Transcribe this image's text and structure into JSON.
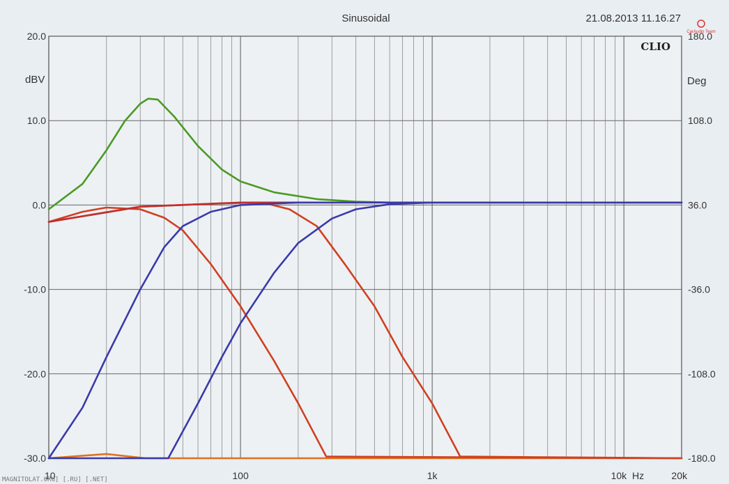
{
  "chart_data": {
    "type": "line",
    "title": "Sinusoidal",
    "timestamp": "21.08.2013 11.16.27",
    "brand": "CLIO",
    "logo_text": "CarAudio Team",
    "watermark": "MAGNITOLAT.ORG] [.RU] [.NET]",
    "x_scale": "log",
    "xlim": [
      10,
      20000
    ],
    "x_ticks": [
      {
        "value": 10,
        "label": "10"
      },
      {
        "value": 100,
        "label": "100"
      },
      {
        "value": 1000,
        "label": "1k"
      },
      {
        "value": 10000,
        "label": "10k"
      },
      {
        "value": 20000,
        "label": "20k"
      }
    ],
    "x_unit_label": "Hz",
    "ylabel": "dBV",
    "ylim": [
      -30,
      20
    ],
    "y_ticks": [
      {
        "value": 20,
        "label": "20.0"
      },
      {
        "value": 10,
        "label": "10.0"
      },
      {
        "value": 0,
        "label": "0.0"
      },
      {
        "value": -10,
        "label": "-10.0"
      },
      {
        "value": -20,
        "label": "-20.0"
      },
      {
        "value": -30,
        "label": "-30.0"
      }
    ],
    "y2label": "Deg",
    "y2lim": [
      -180,
      180
    ],
    "y2_ticks": [
      {
        "value": 180,
        "label": "180.0"
      },
      {
        "value": 108,
        "label": "108.0"
      },
      {
        "value": 36,
        "label": "36.0"
      },
      {
        "value": -36,
        "label": "-36.0"
      },
      {
        "value": -108,
        "label": "-108.0"
      },
      {
        "value": -180,
        "label": "-180.0"
      }
    ],
    "grid": true,
    "series": [
      {
        "color": "#4a9a24",
        "points": [
          [
            10,
            -0.5
          ],
          [
            15,
            2.5
          ],
          [
            20,
            6.5
          ],
          [
            25,
            10
          ],
          [
            30,
            12
          ],
          [
            33,
            12.6
          ],
          [
            37,
            12.5
          ],
          [
            45,
            10.5
          ],
          [
            60,
            7
          ],
          [
            80,
            4.2
          ],
          [
            100,
            2.8
          ],
          [
            150,
            1.5
          ],
          [
            250,
            0.7
          ],
          [
            400,
            0.4
          ],
          [
            600,
            0.3
          ],
          [
            1000,
            0.3
          ],
          [
            20000,
            0.3
          ]
        ]
      },
      {
        "color": "#e07020",
        "points": [
          [
            10,
            -30
          ],
          [
            20,
            -29.5
          ],
          [
            32,
            -30
          ],
          [
            300,
            -30
          ],
          [
            600,
            -30
          ],
          [
            1000,
            -30
          ],
          [
            20000,
            -30
          ]
        ]
      },
      {
        "color": "#d04020",
        "points": [
          [
            10,
            -2
          ],
          [
            15,
            -0.8
          ],
          [
            20,
            -0.3
          ],
          [
            30,
            -0.5
          ],
          [
            40,
            -1.5
          ],
          [
            50,
            -3
          ],
          [
            70,
            -7
          ],
          [
            100,
            -12
          ],
          [
            150,
            -18.5
          ],
          [
            200,
            -23.5
          ],
          [
            280,
            -29.8
          ],
          [
            20000,
            -30
          ]
        ]
      },
      {
        "color": "#d04020",
        "points": [
          [
            10,
            -2
          ],
          [
            30,
            -0.2
          ],
          [
            80,
            0.2
          ],
          [
            130,
            0.3
          ],
          [
            180,
            -0.5
          ],
          [
            250,
            -2.5
          ],
          [
            350,
            -7
          ],
          [
            500,
            -12
          ],
          [
            700,
            -18
          ],
          [
            1000,
            -23.5
          ],
          [
            1400,
            -29.8
          ],
          [
            20000,
            -30
          ]
        ]
      },
      {
        "color": "#c03030",
        "points": [
          [
            10,
            -2
          ],
          [
            30,
            -0.2
          ],
          [
            100,
            0.3
          ],
          [
            300,
            0.3
          ],
          [
            1000,
            0.3
          ],
          [
            20000,
            0.3
          ]
        ]
      },
      {
        "color": "#3a3aa8",
        "points": [
          [
            10,
            -30
          ],
          [
            15,
            -24
          ],
          [
            20,
            -18
          ],
          [
            30,
            -10
          ],
          [
            40,
            -5
          ],
          [
            50,
            -2.5
          ],
          [
            70,
            -0.8
          ],
          [
            100,
            0
          ],
          [
            200,
            0.3
          ],
          [
            1000,
            0.3
          ],
          [
            20000,
            0.3
          ]
        ]
      },
      {
        "color": "#3a3aa8",
        "points": [
          [
            10,
            -30
          ],
          [
            42,
            -30
          ],
          [
            60,
            -23.5
          ],
          [
            80,
            -18
          ],
          [
            100,
            -14
          ],
          [
            150,
            -8
          ],
          [
            200,
            -4.5
          ],
          [
            300,
            -1.6
          ],
          [
            400,
            -0.5
          ],
          [
            600,
            0.1
          ],
          [
            1000,
            0.3
          ],
          [
            20000,
            0.3
          ]
        ]
      }
    ]
  }
}
